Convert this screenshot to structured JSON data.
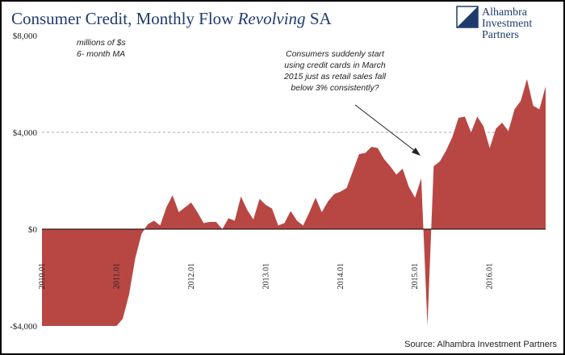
{
  "chart_data": {
    "type": "area",
    "title": [
      "Consumer Credit, Monthly Flow",
      "Revolving",
      "SA"
    ],
    "unit_note": [
      "millions of $s",
      "6- month MA"
    ],
    "annotation": [
      "Consumers suddenly start",
      "using credit cards in March",
      "2015 just as retail sales fall",
      "below 3% consistently?"
    ],
    "logo": [
      "Alhambra",
      "Investment",
      "Partners"
    ],
    "source": "Source: Alhambra Investment Partners",
    "color": "#b84744",
    "grid": true,
    "ylim": [
      -4000,
      8000
    ],
    "yticks": [
      {
        "value": -4000,
        "label": "-$4,000"
      },
      {
        "value": 0,
        "label": "$0"
      },
      {
        "value": 4000,
        "label": "$4,000"
      },
      {
        "value": 8000,
        "label": "$8,000"
      }
    ],
    "categories": [
      "2010.01",
      null,
      null,
      null,
      null,
      null,
      null,
      null,
      null,
      null,
      null,
      null,
      "2011.01",
      null,
      null,
      null,
      null,
      null,
      null,
      null,
      null,
      null,
      null,
      null,
      "2012.01",
      null,
      null,
      null,
      null,
      null,
      null,
      null,
      null,
      null,
      null,
      null,
      "2013.01",
      null,
      null,
      null,
      null,
      null,
      null,
      null,
      null,
      null,
      null,
      null,
      "2014.01",
      null,
      null,
      null,
      null,
      null,
      null,
      null,
      null,
      null,
      null,
      null,
      "2015.01",
      null,
      null,
      null,
      null,
      null,
      null,
      null,
      null,
      null,
      null,
      null,
      "2016.01",
      null,
      null,
      null,
      null,
      null,
      null,
      null,
      null,
      null
    ],
    "values": [
      -4000,
      -4000,
      -4000,
      -4000,
      -4000,
      -4000,
      -4000,
      -4000,
      -4000,
      -4000,
      -4000,
      -4000,
      -4000,
      -3700,
      -2700,
      -1200,
      -200,
      200,
      350,
      150,
      900,
      1400,
      700,
      900,
      1100,
      700,
      250,
      300,
      300,
      0,
      450,
      350,
      1350,
      800,
      400,
      1250,
      1000,
      850,
      150,
      250,
      750,
      350,
      150,
      700,
      1300,
      700,
      1150,
      1450,
      1550,
      1700,
      2400,
      3100,
      3150,
      3400,
      3350,
      2900,
      2600,
      2250,
      2500,
      1750,
      1300,
      2100,
      -4000,
      2600,
      2800,
      3250,
      3800,
      4600,
      4650,
      4000,
      4650,
      4250,
      3350,
      4150,
      4400,
      4050,
      4950,
      5300,
      6200,
      5100,
      4950,
      5900
    ]
  }
}
